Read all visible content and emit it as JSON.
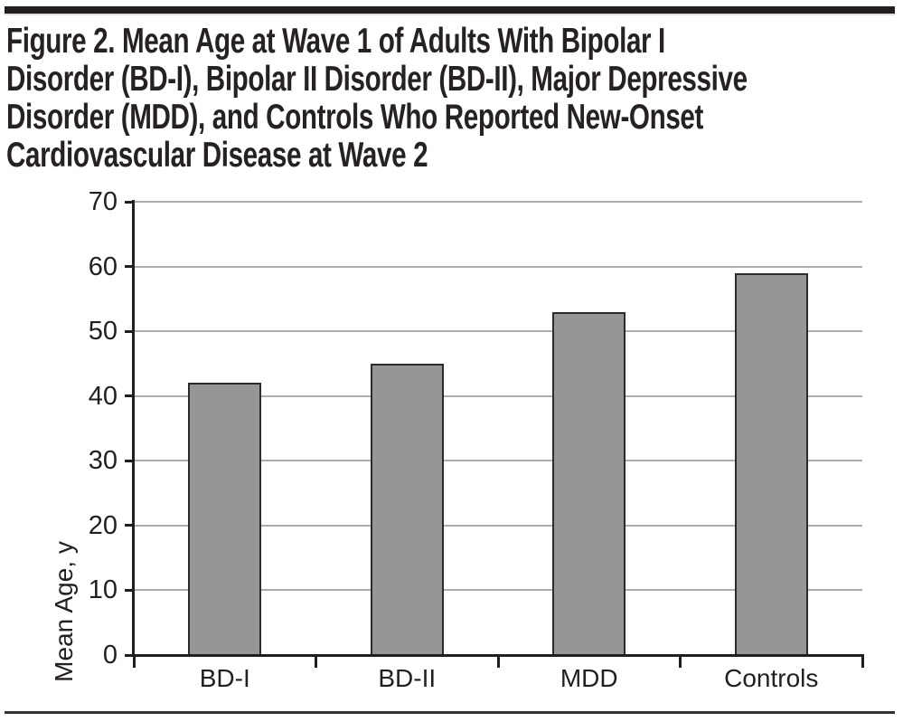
{
  "figure": {
    "title_lines": [
      "Figure 2. Mean Age at Wave 1 of Adults With Bipolar I",
      "Disorder (BD-I), Bipolar II Disorder (BD-II), Major Depressive",
      "Disorder (MDD), and Controls Who Reported New-Onset",
      "Cardiovascular Disease at Wave 2"
    ],
    "title_full": "Figure 2. Mean Age at Wave 1 of Adults With Bipolar I Disorder (BD-I), Bipolar II Disorder (BD-II), Major Depressive Disorder (MDD), and Controls Who Reported New-Onset Cardiovascular Disease at Wave 2"
  },
  "chart_data": {
    "type": "bar",
    "categories": [
      "BD-I",
      "BD-II",
      "MDD",
      "Controls"
    ],
    "values": [
      42,
      45,
      53,
      59
    ],
    "title": "Figure 2. Mean Age at Wave 1 of Adults With Bipolar I Disorder (BD-I), Bipolar II Disorder (BD-II), Major Depressive Disorder (MDD), and Controls Who Reported New-Onset Cardiovascular Disease at Wave 2",
    "xlabel": "",
    "ylabel": "Mean Age, y",
    "ylim": [
      0,
      70
    ],
    "yticks": [
      0,
      10,
      20,
      30,
      40,
      50,
      60,
      70
    ],
    "grid": true,
    "legend_position": "none",
    "bar_color": "#969696",
    "bar_border_color": "#2b2b2b",
    "gridline_color": "#acacac",
    "axis_color": "#1f1f1f",
    "text_color": "#231f20"
  }
}
